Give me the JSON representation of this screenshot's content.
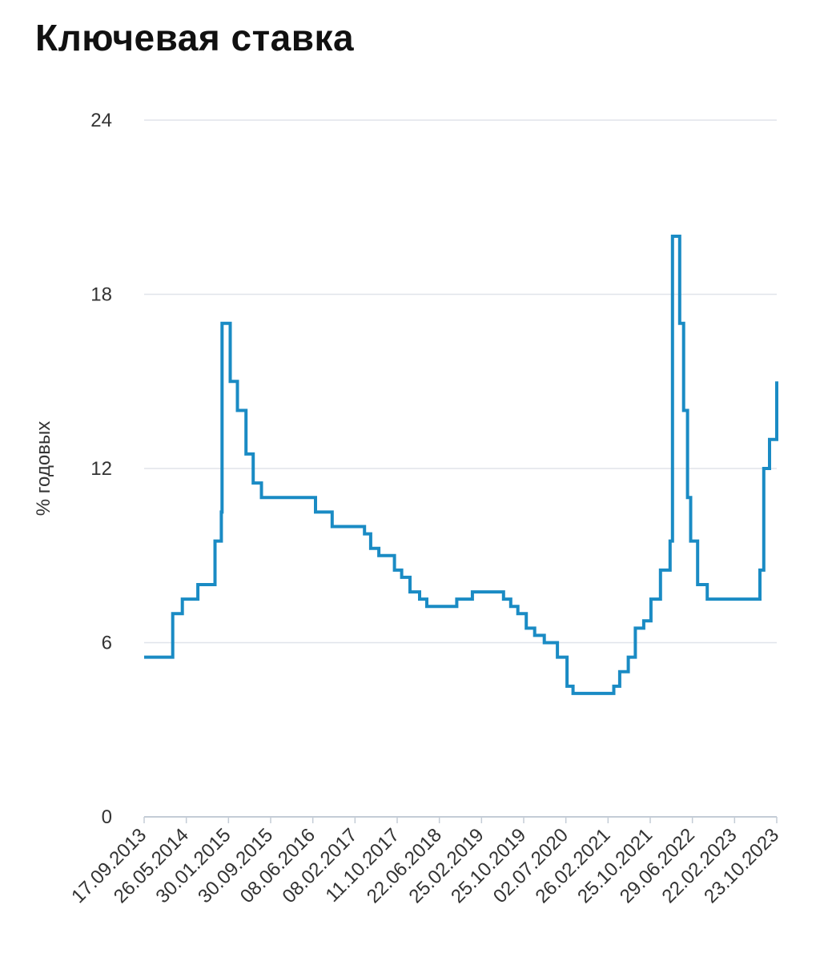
{
  "title": "Ключевая ставка",
  "chart_data": {
    "type": "line",
    "step": "after",
    "ylabel": "% годовых",
    "xlabel": "",
    "ylim": [
      0,
      24
    ],
    "yticks": [
      0,
      6,
      12,
      18,
      24
    ],
    "xlim": [
      "2013-09-17",
      "2023-10-30"
    ],
    "xtick_labels": [
      "17.09.2013",
      "26.05.2014",
      "30.01.2015",
      "30.09.2015",
      "08.06.2016",
      "08.02.2017",
      "11.10.2017",
      "22.06.2018",
      "25.02.2019",
      "25.10.2019",
      "02.07.2020",
      "26.02.2021",
      "25.10.2021",
      "29.06.2022",
      "22.02.2023",
      "23.10.2023"
    ],
    "grid": true,
    "color": "#1a8bc4",
    "series": [
      {
        "x": [
          "2013-09-13",
          "2014-03-03",
          "2014-04-28",
          "2014-07-28",
          "2014-11-05",
          "2014-12-12",
          "2014-12-16",
          "2015-02-02",
          "2015-03-16",
          "2015-05-05",
          "2015-06-16",
          "2015-08-03",
          "2016-06-14",
          "2016-09-19",
          "2017-03-27",
          "2017-05-02",
          "2017-06-19",
          "2017-09-18",
          "2017-10-30",
          "2017-12-18",
          "2018-02-12",
          "2018-03-26",
          "2018-09-17",
          "2018-12-17",
          "2019-06-17",
          "2019-07-29",
          "2019-09-09",
          "2019-10-28",
          "2019-12-16",
          "2020-02-10",
          "2020-04-27",
          "2020-06-22",
          "2020-07-27",
          "2021-03-22",
          "2021-04-26",
          "2021-06-15",
          "2021-07-26",
          "2021-09-13",
          "2021-10-25",
          "2021-12-20",
          "2022-02-14",
          "2022-02-28",
          "2022-04-11",
          "2022-05-04",
          "2022-05-27",
          "2022-06-14",
          "2022-07-25",
          "2022-09-19",
          "2023-07-24",
          "2023-08-15",
          "2023-09-18",
          "2023-10-30"
        ],
        "y": [
          5.5,
          7.0,
          7.5,
          8.0,
          9.5,
          10.5,
          17.0,
          15.0,
          14.0,
          12.5,
          11.5,
          11.0,
          10.5,
          10.0,
          9.75,
          9.25,
          9.0,
          8.5,
          8.25,
          7.75,
          7.5,
          7.25,
          7.5,
          7.75,
          7.5,
          7.25,
          7.0,
          6.5,
          6.25,
          6.0,
          5.5,
          4.5,
          4.25,
          4.5,
          5.0,
          5.5,
          6.5,
          6.75,
          7.5,
          8.5,
          9.5,
          20.0,
          17.0,
          14.0,
          11.0,
          9.5,
          8.0,
          7.5,
          8.5,
          12.0,
          13.0,
          15.0
        ]
      }
    ]
  }
}
